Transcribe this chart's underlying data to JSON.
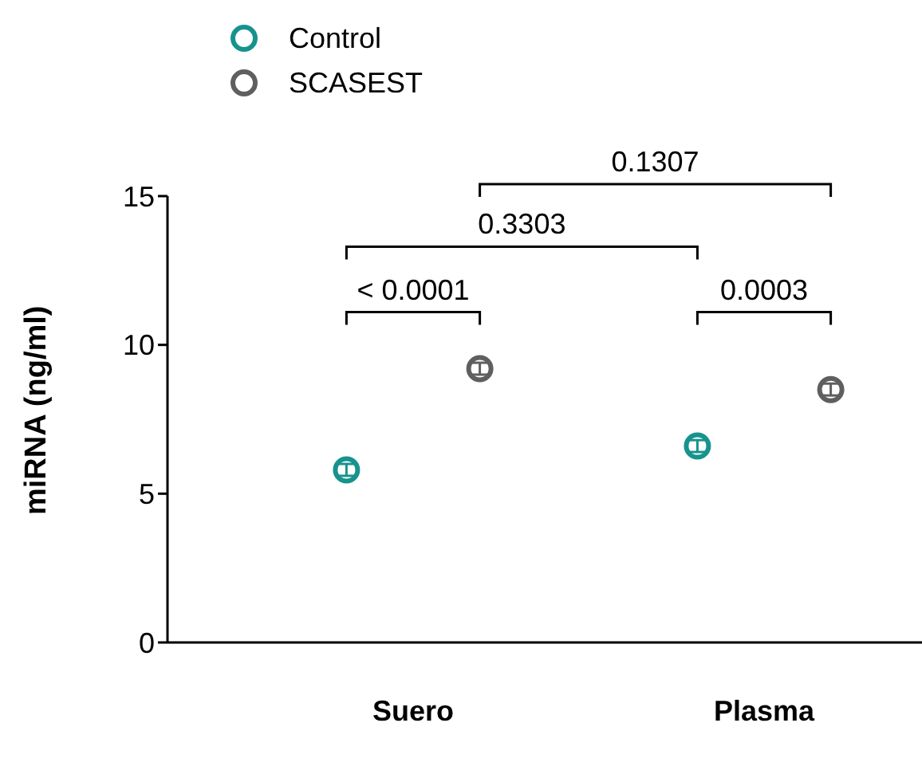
{
  "chart_data": {
    "type": "scatter",
    "ylabel": "miRNA (ng/ml)",
    "categories": [
      "Suero",
      "Plasma"
    ],
    "series": [
      {
        "name": "Control",
        "color": "#17938e",
        "values": [
          5.8,
          6.6
        ],
        "errors": [
          0.2,
          0.2
        ]
      },
      {
        "name": "SCASEST",
        "color": "#5f5f5f",
        "values": [
          9.2,
          8.5
        ],
        "errors": [
          0.2,
          0.2
        ]
      }
    ],
    "ylim": [
      0,
      15
    ],
    "yticks": [
      0,
      5,
      10,
      15
    ],
    "marker": "circle",
    "legend": "top left",
    "grid": false,
    "annotations": [
      "0.1307",
      "0.3303",
      "< 0.0001",
      "0.0003"
    ]
  }
}
